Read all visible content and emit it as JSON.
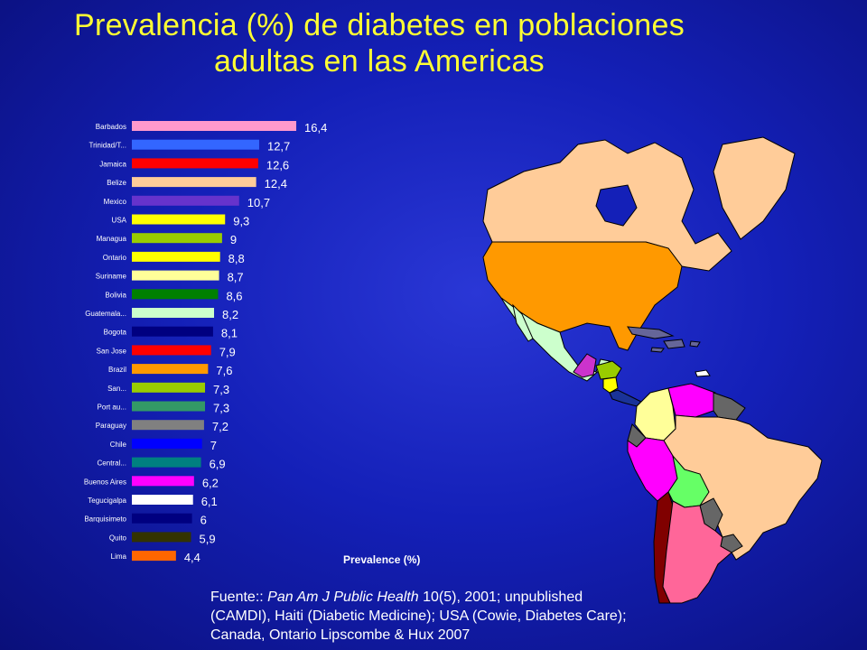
{
  "title": {
    "line1": "Prevalencia (%) de diabetes en poblaciones",
    "line2": "adultas en las Americas"
  },
  "chart_data": {
    "type": "bar",
    "orientation": "horizontal",
    "xlabel": "Prevalence (%)",
    "categories": [
      "Barbados",
      "Trinidad/T...",
      "Jamaica",
      "Belize",
      "Mexico",
      "USA",
      "Managua",
      "Ontario",
      "Suriname",
      "Bolivia",
      "Guatemala...",
      "Bogota",
      "San Jose",
      "Brazil",
      "San...",
      "Port au...",
      "Paraguay",
      "Chile",
      "Central...",
      "Buenos Aires",
      "Tegucigalpa",
      "Barquisimeto",
      "Quito",
      "Lima"
    ],
    "values": [
      16.4,
      12.7,
      12.6,
      12.4,
      10.7,
      9.3,
      9,
      8.8,
      8.7,
      8.6,
      8.2,
      8.1,
      7.9,
      7.6,
      7.3,
      7.3,
      7.2,
      7,
      6.9,
      6.2,
      6.1,
      6,
      5.9,
      4.4
    ],
    "value_labels": [
      "16,4",
      "12,7",
      "12,6",
      "12,4",
      "10,7",
      "9,3",
      "9",
      "8,8",
      "8,7",
      "8,6",
      "8,2",
      "8,1",
      "7,9",
      "7,6",
      "7,3",
      "7,3",
      "7,2",
      "7",
      "6,9",
      "6,2",
      "6,1",
      "6",
      "5,9",
      "4,4"
    ],
    "bar_colors": [
      "#ff99cc",
      "#3366ff",
      "#ff0000",
      "#ffcc99",
      "#6633cc",
      "#ffff00",
      "#99cc00",
      "#ffff00",
      "#ffff99",
      "#008000",
      "#ccffcc",
      "#000080",
      "#ff0000",
      "#ff9900",
      "#99cc00",
      "#339966",
      "#808080",
      "#0000ff",
      "#008080",
      "#ff00ff",
      "#ffffff",
      "#000080",
      "#333300",
      "#ff6600"
    ]
  },
  "source": {
    "prefix": "Fuente:: ",
    "journal": "Pan Am J Public Health",
    "rest_line1": " 10(5), 2001; unpublished",
    "line2": "(CAMDI), Haiti (Diabetic Medicine); USA (Cowie, Diabetes Care);",
    "line3": "Canada, Ontario Lipscombe & Hux 2007"
  },
  "map_colors": {
    "canada": "#ffcc99",
    "usa": "#ff9900",
    "mexico": "#ccffcc",
    "guatemala": "#cc33cc",
    "honduras": "#99cc00",
    "nicaragua": "#ffff00",
    "colombia": "#ffff99",
    "venezuela": "#ff00ff",
    "guianas": "#666666",
    "brazil": "#ffcc99",
    "peru": "#ff00ff",
    "bolivia": "#66ff66",
    "paraguay": "#666666",
    "chile": "#800000",
    "argentina": "#ff6699",
    "caribbean": "#666699",
    "greenland": "#ffcc99"
  }
}
